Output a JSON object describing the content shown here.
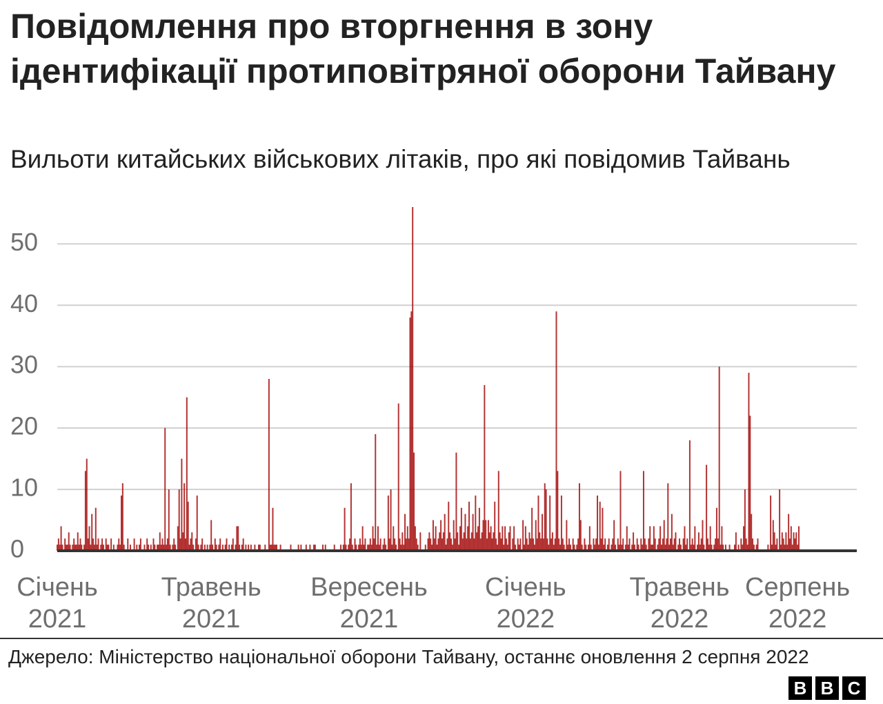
{
  "title": "Повідомлення про вторгнення в зону ідентифікації протиповітряної оборони Тайвану",
  "subtitle": "Вильоти китайських військових літаків, про які повідомив Тайвань",
  "source": "Джерело: Міністерство національної оборони Тайвану, останнє оновлення 2 серпня 2022",
  "logo": [
    "B",
    "B",
    "C"
  ],
  "chart_data": {
    "type": "bar",
    "color": "#a00000",
    "grid": true,
    "ylim": [
      0,
      56
    ],
    "yticks": [
      0,
      10,
      20,
      30,
      40,
      50
    ],
    "categories": [
      "Січень 2021",
      null,
      null,
      null,
      null,
      null,
      null,
      null,
      null,
      null,
      null,
      null,
      null,
      null,
      null,
      null,
      null,
      null,
      null,
      null,
      null,
      null,
      null,
      null,
      null,
      null,
      null,
      null,
      null,
      null,
      null,
      null,
      null,
      null,
      null,
      null,
      null,
      null,
      null,
      null,
      null,
      null,
      null,
      null,
      null,
      null,
      null,
      null,
      null,
      null,
      null,
      null,
      null,
      null,
      null,
      null,
      null,
      null,
      null,
      null,
      null,
      null,
      null,
      null,
      null,
      null,
      null,
      null,
      null,
      null,
      null,
      null,
      null,
      null,
      null,
      null,
      null,
      null,
      null,
      null,
      null,
      null,
      null,
      null,
      null,
      null,
      null,
      null,
      null,
      null,
      null,
      null,
      null,
      null,
      null,
      null,
      null,
      null,
      null,
      null,
      null,
      null,
      null,
      null,
      null,
      null,
      null,
      null,
      null,
      null,
      null,
      null,
      null,
      null,
      null,
      null,
      null,
      null,
      null,
      null,
      "Травень 2021",
      null,
      null,
      null,
      null,
      null,
      null,
      null,
      null,
      null,
      null,
      null,
      null,
      null,
      null,
      null,
      null,
      null,
      null,
      null,
      null,
      null,
      null,
      null,
      null,
      null,
      null,
      null,
      null,
      null,
      null,
      null,
      null,
      null,
      null,
      null,
      null,
      null,
      null,
      null,
      null,
      null,
      null,
      null,
      null,
      null,
      null,
      null,
      null,
      null,
      null,
      null,
      null,
      null,
      null,
      null,
      null,
      null,
      null,
      null,
      null,
      null,
      null,
      null,
      null,
      null,
      null,
      null,
      null,
      null,
      null,
      null,
      null,
      null,
      null,
      null,
      null,
      null,
      null,
      null,
      null,
      null,
      null,
      null,
      null,
      null,
      null,
      null,
      null,
      null,
      null,
      null,
      null,
      null,
      null,
      null,
      null,
      null,
      null,
      null,
      null,
      null,
      null,
      null,
      null,
      null,
      null,
      null,
      null,
      null,
      null,
      null,
      null,
      null,
      null,
      null,
      null,
      null,
      null,
      null,
      null,
      null,
      null,
      "Вересень 2021",
      null,
      null,
      null,
      null,
      null,
      null,
      null,
      null,
      null,
      null,
      null,
      null,
      null,
      null,
      null,
      null,
      null,
      null,
      null,
      null,
      null,
      null,
      null,
      null,
      null,
      null,
      null,
      null,
      null,
      null,
      null,
      null,
      null,
      null,
      null,
      null,
      null,
      null,
      null,
      null,
      null,
      null,
      null,
      null,
      null,
      null,
      null,
      null,
      null,
      null,
      null,
      null,
      null,
      null,
      null,
      null,
      null,
      null,
      null,
      null,
      null,
      null,
      null,
      null,
      null,
      null,
      null,
      null,
      null,
      null,
      null,
      null,
      null,
      null,
      null,
      null,
      null,
      null,
      null,
      null,
      null,
      null,
      null,
      null,
      null,
      null,
      null,
      null,
      null,
      null,
      null,
      null,
      null,
      null,
      null,
      null,
      null,
      null,
      null,
      null,
      null,
      null,
      null,
      null,
      null,
      null,
      null,
      null,
      null,
      null,
      null,
      null,
      null,
      null,
      null,
      null,
      null,
      null,
      null,
      null,
      null,
      "Січень 2022",
      null,
      null,
      null,
      null,
      null,
      null,
      null,
      null,
      null,
      null,
      null,
      null,
      null,
      null,
      null,
      null,
      null,
      null,
      null,
      null,
      null,
      null,
      null,
      null,
      null,
      null,
      null,
      null,
      null,
      null,
      null,
      null,
      null,
      null,
      null,
      null,
      null,
      null,
      null,
      null,
      null,
      null,
      null,
      null,
      null,
      null,
      null,
      null,
      null,
      null,
      null,
      null,
      null,
      null,
      null,
      null,
      null,
      null,
      null,
      null,
      null,
      null,
      null,
      null,
      null,
      null,
      null,
      null,
      null,
      null,
      null,
      null,
      null,
      null,
      null,
      null,
      null,
      null,
      null,
      null,
      null,
      null,
      null,
      null,
      null,
      null,
      null,
      null,
      null,
      null,
      null,
      null,
      null,
      null,
      null,
      null,
      null,
      null,
      null,
      null,
      null,
      null,
      null,
      null,
      null,
      null,
      null,
      null,
      null,
      null,
      null,
      null,
      null,
      null,
      null,
      null,
      null,
      null,
      null,
      "Травень 2022",
      null,
      null,
      null,
      null,
      null,
      null,
      null,
      null,
      null,
      null,
      null,
      null,
      null,
      null,
      null,
      null,
      null,
      null,
      null,
      null,
      null,
      null,
      null,
      null,
      null,
      null,
      null,
      null,
      null,
      null,
      null,
      null,
      null,
      null,
      null,
      null,
      null,
      null,
      null,
      null,
      null,
      null,
      null,
      null,
      null,
      null,
      null,
      null,
      null,
      null,
      null,
      null,
      null,
      null,
      null,
      null,
      null,
      null,
      null,
      null,
      null,
      null,
      null,
      null,
      null,
      null,
      null,
      null,
      null,
      null,
      null,
      null,
      null,
      null,
      null,
      null,
      null,
      null,
      null,
      null,
      null,
      null,
      null,
      null,
      null,
      null,
      null,
      null,
      null,
      null,
      null,
      "Серпень 2022",
      null
    ],
    "values": [
      1,
      2,
      1,
      4,
      1,
      0,
      2,
      1,
      1,
      3,
      1,
      0,
      1,
      2,
      1,
      1,
      3,
      1,
      2,
      1,
      0,
      1,
      13,
      15,
      2,
      4,
      1,
      6,
      2,
      1,
      7,
      1,
      2,
      0,
      1,
      2,
      1,
      0,
      2,
      1,
      1,
      0,
      2,
      0,
      1,
      0,
      0,
      1,
      2,
      1,
      9,
      11,
      1,
      0,
      0,
      2,
      0,
      1,
      0,
      0,
      2,
      0,
      1,
      0,
      1,
      2,
      0,
      0,
      1,
      0,
      2,
      1,
      0,
      1,
      0,
      2,
      1,
      0,
      1,
      1,
      3,
      1,
      2,
      1,
      20,
      1,
      2,
      10,
      1,
      0,
      1,
      2,
      1,
      0,
      4,
      10,
      2,
      15,
      3,
      11,
      2,
      25,
      8,
      1,
      2,
      3,
      1,
      0,
      2,
      9,
      1,
      0,
      1,
      2,
      0,
      1,
      0,
      1,
      0,
      1,
      5,
      1,
      0,
      2,
      1,
      0,
      1,
      2,
      0,
      1,
      0,
      1,
      2,
      0,
      1,
      0,
      1,
      2,
      0,
      1,
      4,
      4,
      1,
      0,
      1,
      2,
      0,
      1,
      0,
      1,
      0,
      1,
      0,
      0,
      1,
      0,
      0,
      1,
      1,
      0,
      0,
      0,
      1,
      0,
      0,
      28,
      1,
      1,
      7,
      1,
      1,
      1,
      0,
      0,
      1,
      0,
      0,
      0,
      0,
      0,
      0,
      0,
      1,
      0,
      0,
      0,
      0,
      0,
      1,
      0,
      1,
      0,
      0,
      0,
      1,
      0,
      0,
      1,
      0,
      0,
      1,
      1,
      0,
      0,
      0,
      0,
      0,
      1,
      0,
      1,
      0,
      0,
      0,
      0,
      0,
      0,
      1,
      0,
      0,
      0,
      0,
      1,
      0,
      1,
      7,
      1,
      0,
      1,
      2,
      11,
      1,
      0,
      2,
      1,
      0,
      1,
      2,
      1,
      4,
      1,
      2,
      0,
      1,
      1,
      2,
      1,
      4,
      2,
      19,
      1,
      4,
      1,
      2,
      0,
      1,
      2,
      1,
      0,
      9,
      2,
      10,
      1,
      4,
      2,
      1,
      0,
      24,
      2,
      1,
      3,
      1,
      6,
      2,
      4,
      2,
      38,
      39,
      56,
      16,
      4,
      2,
      1,
      0,
      3,
      0,
      0,
      0,
      1,
      0,
      2,
      3,
      2,
      1,
      5,
      2,
      4,
      1,
      2,
      3,
      5,
      2,
      3,
      6,
      1,
      2,
      8,
      3,
      2,
      1,
      5,
      2,
      16,
      3,
      1,
      4,
      7,
      2,
      3,
      6,
      2,
      4,
      8,
      2,
      3,
      6,
      2,
      9,
      3,
      4,
      7,
      2,
      3,
      5,
      27,
      5,
      2,
      5,
      3,
      4,
      2,
      3,
      8,
      2,
      1,
      13,
      3,
      2,
      4,
      1,
      4,
      2,
      1,
      3,
      4,
      0,
      2,
      4,
      1,
      0,
      2,
      1,
      2,
      0,
      5,
      1,
      4,
      2,
      1,
      3,
      2,
      7,
      2,
      1,
      5,
      2,
      9,
      3,
      2,
      6,
      2,
      11,
      10,
      2,
      1,
      9,
      2,
      3,
      1,
      2,
      39,
      13,
      2,
      1,
      9,
      2,
      1,
      0,
      5,
      1,
      2,
      1,
      0,
      2,
      1,
      0,
      1,
      2,
      11,
      5,
      1,
      0,
      2,
      1,
      0,
      1,
      4,
      1,
      0,
      2,
      1,
      2,
      9,
      1,
      8,
      2,
      7,
      1,
      2,
      0,
      1,
      2,
      0,
      1,
      2,
      5,
      1,
      0,
      2,
      1,
      13,
      1,
      2,
      0,
      1,
      4,
      1,
      2,
      0,
      1,
      3,
      1,
      0,
      2,
      1,
      0,
      2,
      1,
      13,
      2,
      1,
      0,
      2,
      4,
      1,
      1,
      4,
      2,
      0,
      1,
      2,
      4,
      1,
      2,
      5,
      1,
      2,
      11,
      1,
      2,
      6,
      1,
      2,
      3,
      0,
      1,
      2,
      1,
      0,
      2,
      4,
      1,
      2,
      0,
      18,
      1,
      2,
      1,
      4,
      0,
      1,
      3,
      1,
      2,
      5,
      1,
      0,
      14,
      2,
      1,
      4,
      1,
      0,
      1,
      2,
      7,
      2,
      30,
      1,
      4,
      1,
      0,
      1,
      0,
      0,
      1,
      0,
      0,
      0,
      1,
      3,
      0,
      1,
      0,
      2,
      1,
      4,
      10,
      2,
      1,
      29,
      22,
      6,
      2,
      1,
      0,
      1,
      2,
      0,
      0,
      0,
      0,
      0,
      0,
      0,
      1,
      0,
      9,
      1,
      5,
      3,
      1,
      2,
      0,
      10,
      1,
      3,
      2,
      1,
      3,
      1,
      6,
      2,
      4,
      1,
      3,
      2,
      3,
      1,
      4
    ]
  }
}
